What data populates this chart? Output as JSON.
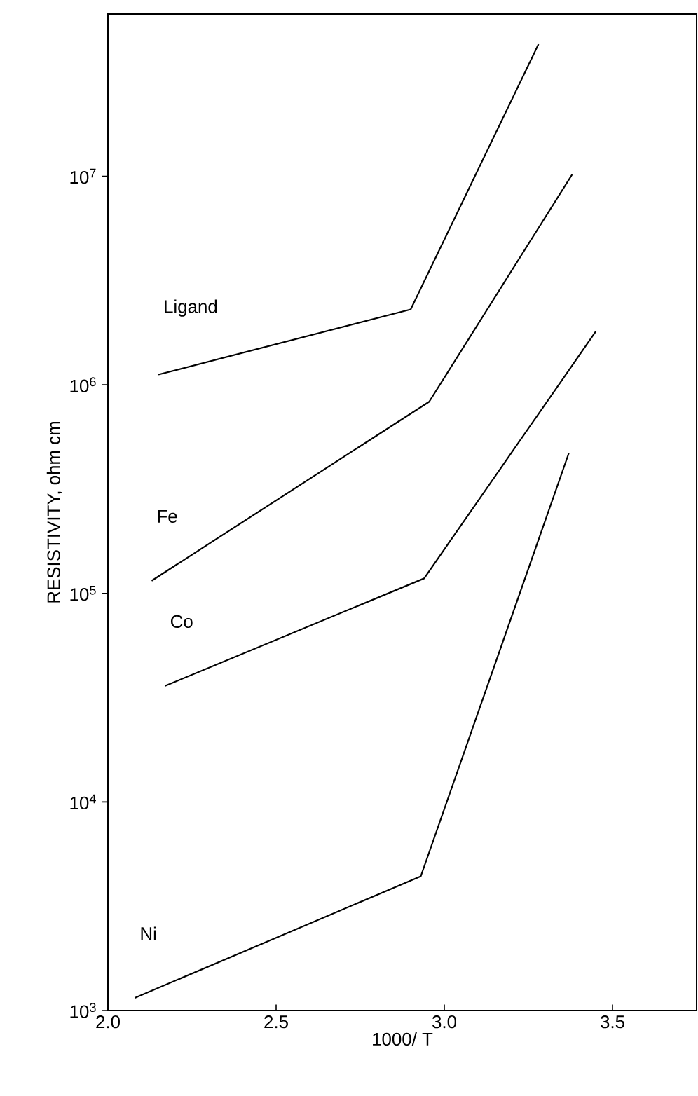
{
  "chart_data": {
    "type": "line",
    "xlabel": "1000/ T",
    "ylabel": "RESISTIVITY, ohm cm",
    "log": "y",
    "xlim": [
      2.0,
      3.75
    ],
    "ylim": [
      1000,
      60000000
    ],
    "xticks": [
      {
        "value": 2.0,
        "label": "2.0"
      },
      {
        "value": 2.5,
        "label": "2.5"
      },
      {
        "value": 3.0,
        "label": "3.0"
      },
      {
        "value": 3.5,
        "label": "3.5"
      }
    ],
    "yticks": [
      {
        "value": 1000,
        "label": "10$^{3}$"
      },
      {
        "value": 10000,
        "label": "10$^{4}$"
      },
      {
        "value": 100000,
        "label": "10$^{5}$"
      },
      {
        "value": 1000000,
        "label": "10$^{6}$"
      },
      {
        "value": 10000000,
        "label": "10$^{7}$"
      }
    ],
    "grid": false,
    "legend": false,
    "marker": "none",
    "line_style": "solid",
    "series": [
      {
        "name": "Ligand",
        "color": "#000000",
        "x": [
          2.15,
          2.9,
          3.28
        ],
        "values": [
          1120000,
          2300000,
          43000000
        ]
      },
      {
        "name": "Fe",
        "color": "#000000",
        "x": [
          2.13,
          2.955,
          3.38
        ],
        "values": [
          115000,
          830000,
          10200000
        ]
      },
      {
        "name": "Co",
        "color": "#000000",
        "x": [
          2.17,
          2.94,
          3.45
        ],
        "values": [
          36000,
          118000,
          1800000
        ]
      },
      {
        "name": "Ni",
        "color": "#000000",
        "x": [
          2.08,
          2.93,
          3.37
        ],
        "values": [
          1150,
          4400,
          470000
        ]
      }
    ]
  }
}
